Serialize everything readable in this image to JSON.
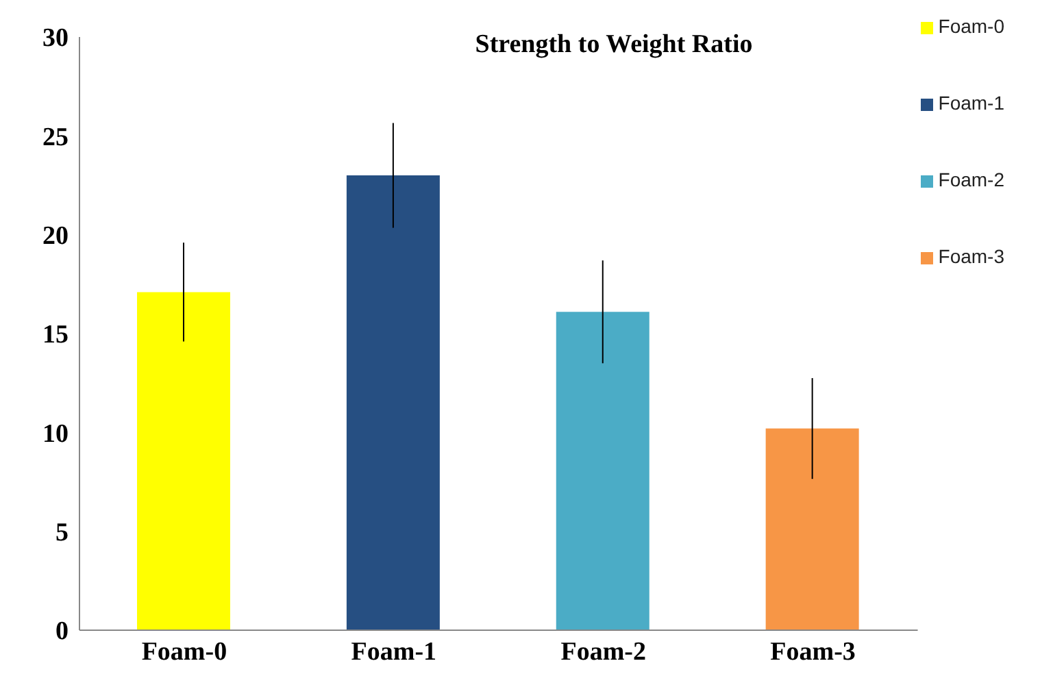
{
  "chart_data": {
    "type": "bar",
    "title": "Strength to Weight Ratio",
    "categories": [
      "Foam-0",
      "Foam-1",
      "Foam-2",
      "Foam-3"
    ],
    "series": [
      {
        "name": "Foam-0",
        "color": "#ffff00",
        "values": [
          17.1,
          null,
          null,
          null
        ],
        "errors": [
          2.5,
          null,
          null,
          null
        ]
      },
      {
        "name": "Foam-1",
        "color": "#264f82",
        "values": [
          null,
          23.0,
          null,
          null
        ],
        "errors": [
          null,
          2.65,
          null,
          null
        ]
      },
      {
        "name": "Foam-2",
        "color": "#4bacc6",
        "values": [
          null,
          null,
          16.1,
          null
        ],
        "errors": [
          null,
          null,
          2.6,
          null
        ]
      },
      {
        "name": "Foam-3",
        "color": "#f79646",
        "values": [
          null,
          null,
          null,
          10.2
        ],
        "errors": [
          null,
          null,
          null,
          2.55
        ]
      }
    ],
    "ylim": [
      0,
      30
    ],
    "yticks": [
      0,
      5,
      10,
      15,
      20,
      25,
      30
    ],
    "grid": false,
    "legend": "top right"
  }
}
